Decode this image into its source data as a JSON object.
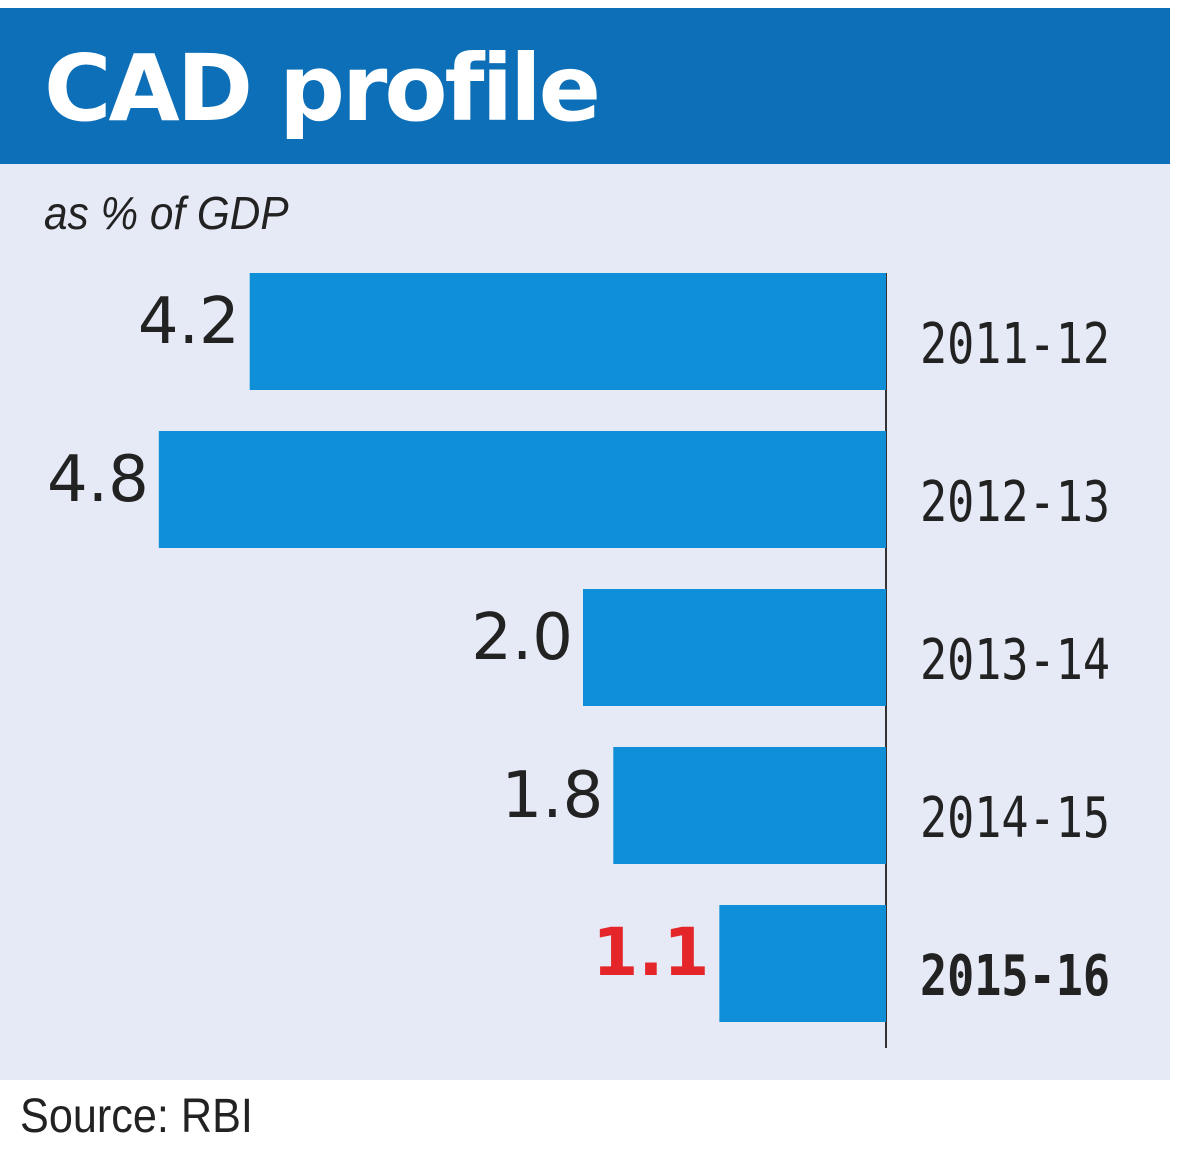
{
  "chart_data": {
    "type": "bar",
    "orientation": "horizontal",
    "title": "CAD profile",
    "subtitle": "as % of GDP",
    "categories": [
      "2011-12",
      "2012-13",
      "2013-14",
      "2014-15",
      "2015-16"
    ],
    "values": [
      4.2,
      4.8,
      2.0,
      1.8,
      1.1
    ],
    "value_labels": [
      "4.2",
      "4.8",
      "2.0",
      "1.8",
      "1.1"
    ],
    "highlight_index": 4,
    "colors": {
      "bar": "#0f8fd8",
      "highlight_label": "#e4262b",
      "header": "#0d6fb8",
      "panel": "#e6eaf6"
    },
    "source": "Source: RBI"
  }
}
